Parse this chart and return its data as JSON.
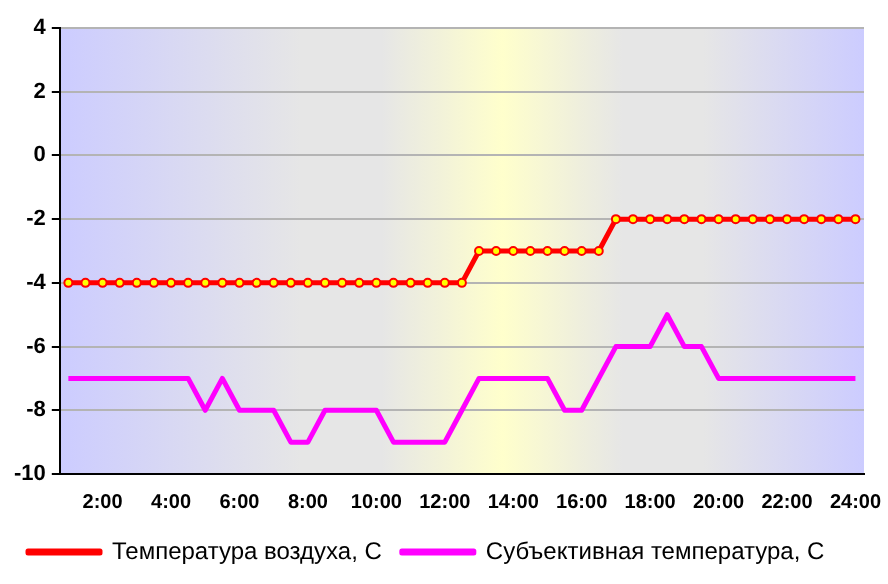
{
  "chart_data": {
    "type": "line",
    "categories": [
      null,
      null,
      "2:00",
      null,
      null,
      null,
      "4:00",
      null,
      null,
      null,
      "6:00",
      null,
      null,
      null,
      "8:00",
      null,
      null,
      null,
      "10:00",
      null,
      null,
      null,
      "12:00",
      null,
      null,
      null,
      "14:00",
      null,
      null,
      null,
      "16:00",
      null,
      null,
      null,
      "18:00",
      null,
      null,
      null,
      "20:00",
      null,
      null,
      null,
      "22:00",
      null,
      null,
      null,
      "24:00"
    ],
    "series": [
      {
        "name": "Температура воздуха, С",
        "color": "#ff0000",
        "marker": "circle",
        "values": [
          -4,
          -4,
          -4,
          -4,
          -4,
          -4,
          -4,
          -4,
          -4,
          -4,
          -4,
          -4,
          -4,
          -4,
          -4,
          -4,
          -4,
          -4,
          -4,
          -4,
          -4,
          -4,
          -4,
          -4,
          -3,
          -3,
          -3,
          -3,
          -3,
          -3,
          -3,
          -3,
          -2,
          -2,
          -2,
          -2,
          -2,
          -2,
          -2,
          -2,
          -2,
          -2,
          -2,
          -2,
          -2,
          -2,
          -2
        ]
      },
      {
        "name": "Субъективная температура, С",
        "color": "#ff00ff",
        "marker": "none",
        "values": [
          -7,
          -7,
          -7,
          -7,
          -7,
          -7,
          -7,
          -7,
          -8,
          -7,
          -8,
          -8,
          -8,
          -9,
          -9,
          -8,
          -8,
          -8,
          -8,
          -9,
          -9,
          -9,
          -9,
          -8,
          -7,
          -7,
          -7,
          -7,
          -7,
          -8,
          -8,
          -7,
          -6,
          -6,
          -6,
          -5,
          -6,
          -6,
          -7,
          -7,
          -7,
          -7,
          -7,
          -7,
          -7,
          -7,
          -7
        ]
      }
    ],
    "ylim": [
      -10,
      4
    ],
    "yticks": [
      -10,
      -8,
      -6,
      -4,
      -2,
      0,
      2,
      4
    ],
    "grid": "y",
    "legend": "bottom"
  }
}
